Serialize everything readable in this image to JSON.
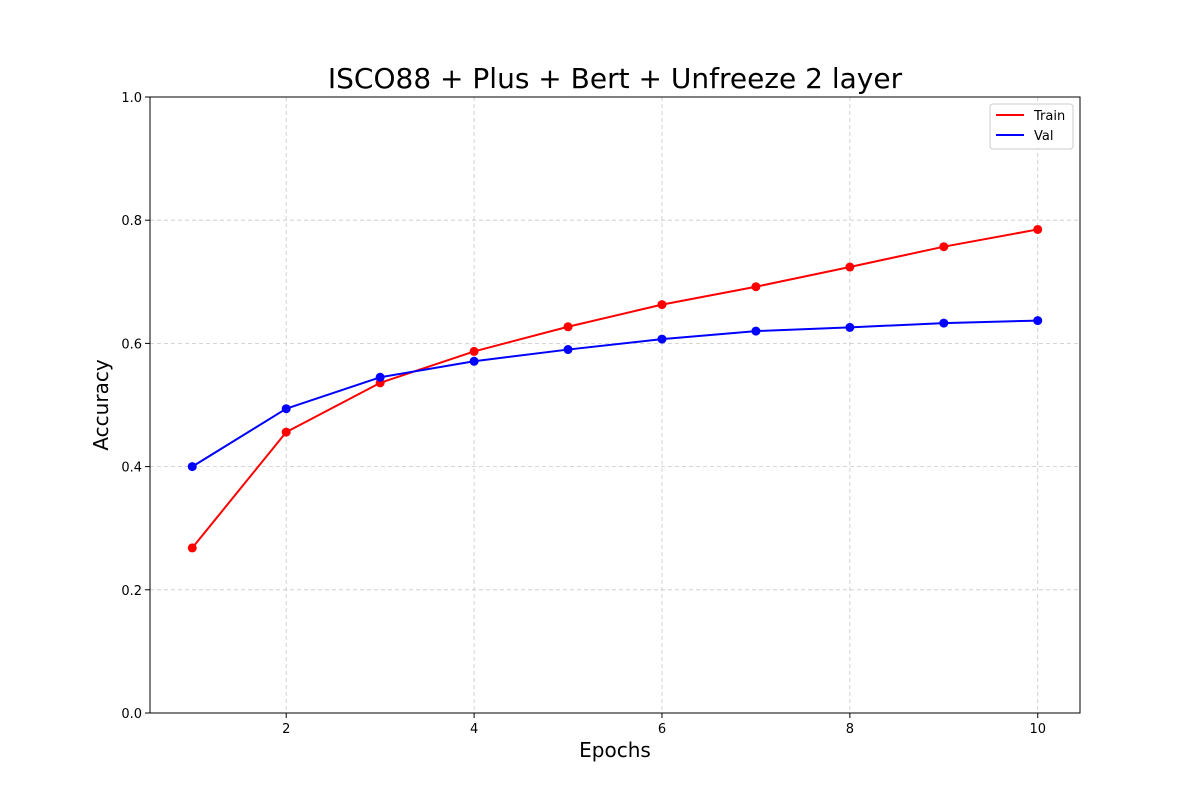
{
  "chart_data": {
    "type": "line",
    "title": "ISCO88 + Plus + Bert + Unfreeze 2 layer",
    "xlabel": "Epochs",
    "ylabel": "Accuracy",
    "xlim": [
      0.55,
      10.45
    ],
    "ylim": [
      0.0,
      1.0
    ],
    "x_ticks": [
      2,
      4,
      6,
      8,
      10
    ],
    "x_tick_labels": [
      "2",
      "4",
      "6",
      "8",
      "10"
    ],
    "y_ticks": [
      0.0,
      0.2,
      0.4,
      0.6,
      0.8,
      1.0
    ],
    "y_tick_labels": [
      "0.0",
      "0.2",
      "0.4",
      "0.6",
      "0.8",
      "1.0"
    ],
    "grid": true,
    "legend_position": "top-right",
    "x": [
      1,
      2,
      3,
      4,
      5,
      6,
      7,
      8,
      9,
      10
    ],
    "series": [
      {
        "name": "Train",
        "color": "#ff0000",
        "values": [
          0.268,
          0.456,
          0.536,
          0.587,
          0.627,
          0.663,
          0.692,
          0.724,
          0.757,
          0.785
        ]
      },
      {
        "name": "Val",
        "color": "#0000ff",
        "values": [
          0.4,
          0.494,
          0.545,
          0.571,
          0.59,
          0.607,
          0.62,
          0.626,
          0.633,
          0.637
        ]
      }
    ]
  }
}
